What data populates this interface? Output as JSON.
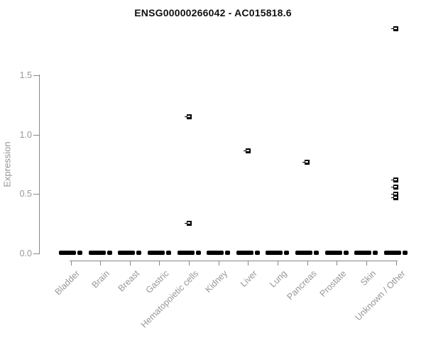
{
  "page": {
    "background": "#ffffff"
  },
  "chart_data": {
    "type": "scatter",
    "subtype": "strip-plot-per-category-with-zero-clusters",
    "title": "ENSG00000266042 - AC015818.6",
    "ylabel": "Expression",
    "xlabel": "",
    "ylim": [
      0,
      1.95
    ],
    "yticks": [
      0.0,
      0.5,
      1.0,
      1.5
    ],
    "ytick_labels": [
      "0.0",
      "0.5",
      "1.0",
      "1.5"
    ],
    "grid": false,
    "legend": false,
    "categories": [
      "Bladder",
      "Brain",
      "Breast",
      "Gastric",
      "Hematopoietic cells",
      "Kidney",
      "Liver",
      "Lung",
      "Pancreas",
      "Prostate",
      "Skin",
      "Unknown / Other"
    ],
    "series": [
      {
        "category": "Bladder",
        "zero_cluster": true,
        "outliers": []
      },
      {
        "category": "Brain",
        "zero_cluster": true,
        "outliers": []
      },
      {
        "category": "Breast",
        "zero_cluster": true,
        "outliers": []
      },
      {
        "category": "Gastric",
        "zero_cluster": true,
        "outliers": []
      },
      {
        "category": "Hematopoietic cells",
        "zero_cluster": true,
        "outliers": [
          1.15,
          0.25
        ]
      },
      {
        "category": "Kidney",
        "zero_cluster": true,
        "outliers": []
      },
      {
        "category": "Liver",
        "zero_cluster": true,
        "outliers": [
          0.86
        ]
      },
      {
        "category": "Lung",
        "zero_cluster": true,
        "outliers": []
      },
      {
        "category": "Pancreas",
        "zero_cluster": true,
        "outliers": [
          0.77
        ]
      },
      {
        "category": "Prostate",
        "zero_cluster": true,
        "outliers": []
      },
      {
        "category": "Skin",
        "zero_cluster": true,
        "outliers": []
      },
      {
        "category": "Unknown / Other",
        "zero_cluster": true,
        "outliers": [
          1.89,
          0.62,
          0.56,
          0.5,
          0.47
        ]
      }
    ],
    "colors": {
      "point": "#000000",
      "axis": "#878787",
      "tick_label": "#979797",
      "title": "#111111"
    }
  }
}
